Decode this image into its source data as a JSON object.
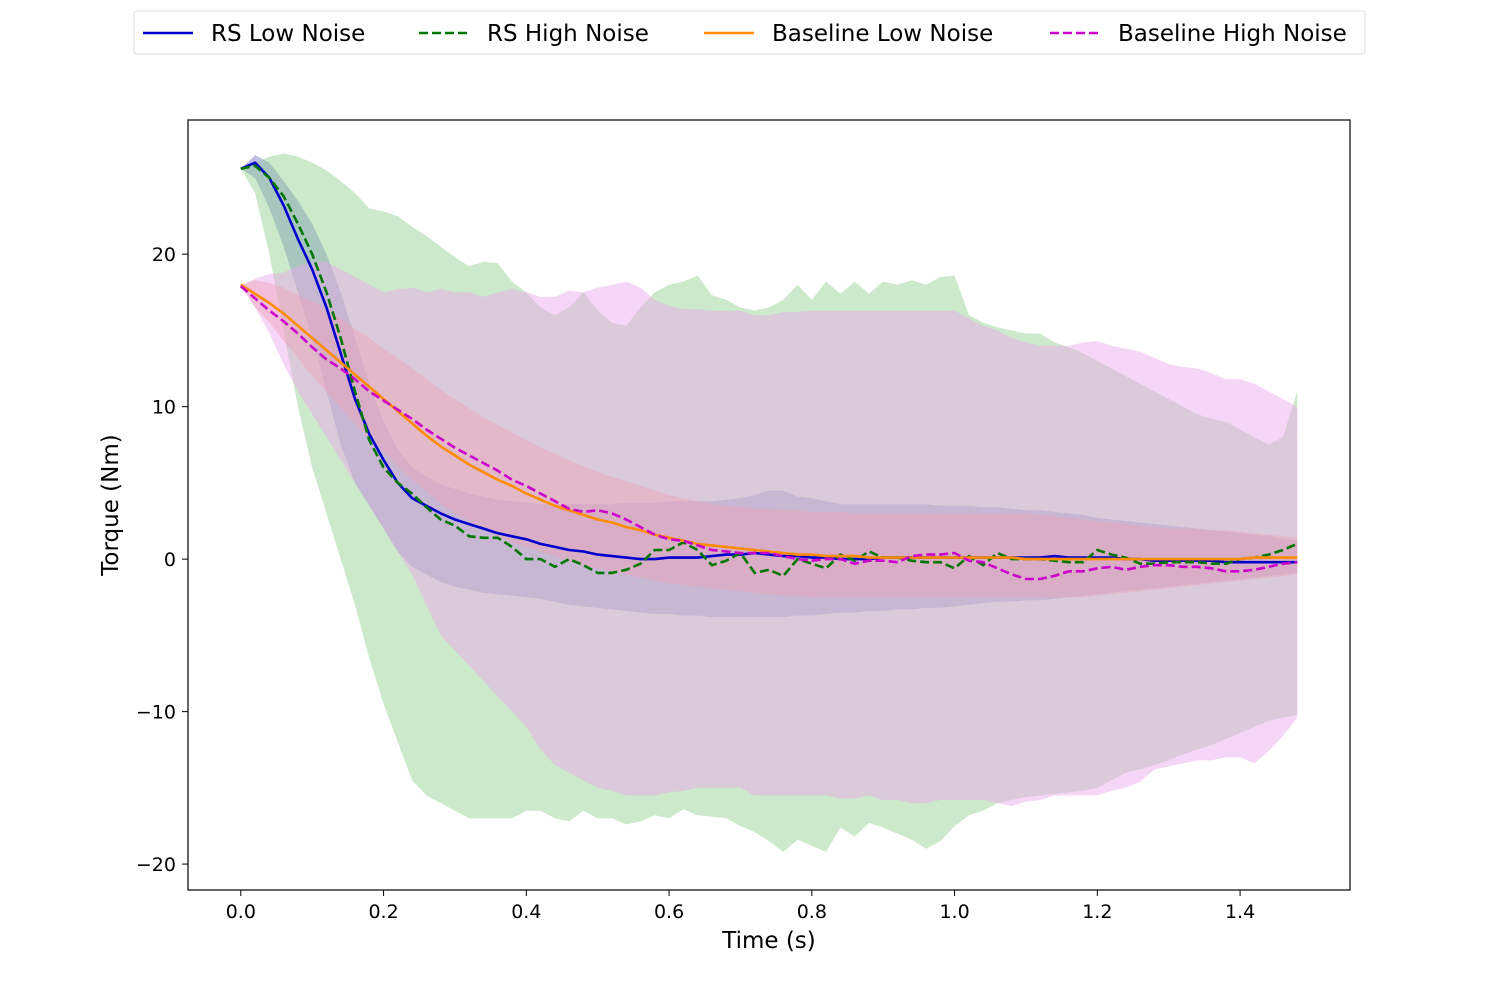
{
  "chart_data": {
    "type": "line",
    "title": "",
    "xlabel": "Time (s)",
    "ylabel": "Torque (Nm)",
    "xlim": [
      -0.074,
      1.554
    ],
    "ylim": [
      -21.7,
      28.8
    ],
    "xticks": [
      0.0,
      0.2,
      0.4,
      0.6,
      0.8,
      1.0,
      1.2,
      1.4
    ],
    "xtick_labels": [
      "0.0",
      "0.2",
      "0.4",
      "0.6",
      "0.8",
      "1.0",
      "1.2",
      "1.4"
    ],
    "yticks": [
      -20,
      -10,
      0,
      10,
      20
    ],
    "ytick_labels": [
      "−20",
      "−10",
      "0",
      "10",
      "20"
    ],
    "grid": false,
    "legend_position": "top-center outside",
    "x": [
      0.0,
      0.02,
      0.04,
      0.06,
      0.08,
      0.1,
      0.12,
      0.14,
      0.16,
      0.18,
      0.2,
      0.22,
      0.24,
      0.26,
      0.28,
      0.3,
      0.32,
      0.34,
      0.36,
      0.38,
      0.4,
      0.42,
      0.44,
      0.46,
      0.48,
      0.5,
      0.52,
      0.54,
      0.56,
      0.58,
      0.6,
      0.62,
      0.64,
      0.66,
      0.68,
      0.7,
      0.72,
      0.74,
      0.76,
      0.78,
      0.8,
      0.82,
      0.84,
      0.86,
      0.88,
      0.9,
      0.92,
      0.94,
      0.96,
      0.98,
      1.0,
      1.02,
      1.04,
      1.06,
      1.08,
      1.1,
      1.12,
      1.14,
      1.16,
      1.18,
      1.2,
      1.22,
      1.24,
      1.26,
      1.28,
      1.3,
      1.32,
      1.34,
      1.36,
      1.38,
      1.4,
      1.42,
      1.44,
      1.46,
      1.48
    ],
    "series": [
      {
        "name": "RS Low Noise",
        "color": "#0000cc",
        "dash": "solid",
        "fill": "#7070c8",
        "values": [
          25.6,
          26.0,
          25.0,
          23.2,
          21.0,
          19.0,
          16.5,
          13.5,
          10.5,
          8.2,
          6.5,
          5.0,
          4.0,
          3.5,
          3.0,
          2.6,
          2.3,
          2.0,
          1.7,
          1.5,
          1.3,
          1.0,
          0.8,
          0.6,
          0.5,
          0.3,
          0.2,
          0.1,
          0.0,
          0.0,
          0.1,
          0.1,
          0.1,
          0.2,
          0.3,
          0.3,
          0.4,
          0.3,
          0.2,
          0.2,
          0.1,
          0.1,
          0.0,
          0.0,
          0.0,
          0.1,
          0.1,
          0.1,
          0.1,
          0.1,
          0.1,
          0.1,
          0.1,
          0.1,
          0.1,
          0.1,
          0.1,
          0.2,
          0.1,
          0.1,
          0.1,
          0.1,
          0.0,
          0.0,
          -0.1,
          -0.1,
          -0.1,
          -0.1,
          -0.1,
          -0.2,
          -0.2,
          -0.2,
          -0.2,
          -0.2,
          -0.2
        ],
        "lower": [
          25.6,
          25.0,
          23.0,
          20.5,
          17.5,
          14.5,
          11.0,
          7.5,
          5.0,
          3.5,
          2.0,
          0.5,
          -0.5,
          -1.0,
          -1.5,
          -1.8,
          -2.0,
          -2.2,
          -2.3,
          -2.4,
          -2.5,
          -2.6,
          -2.8,
          -3.0,
          -3.1,
          -3.2,
          -3.3,
          -3.4,
          -3.5,
          -3.6,
          -3.6,
          -3.7,
          -3.7,
          -3.8,
          -3.8,
          -3.8,
          -3.8,
          -3.8,
          -3.8,
          -3.7,
          -3.7,
          -3.6,
          -3.5,
          -3.5,
          -3.4,
          -3.4,
          -3.3,
          -3.3,
          -3.2,
          -3.2,
          -3.1,
          -3.0,
          -2.9,
          -2.8,
          -2.8,
          -2.7,
          -2.7,
          -2.6,
          -2.5,
          -2.4,
          -2.3,
          -2.2,
          -2.1,
          -2.0,
          -1.9,
          -1.8,
          -1.7,
          -1.6,
          -1.5,
          -1.4,
          -1.3,
          -1.2,
          -1.1,
          -1.0,
          -0.9
        ],
        "upper": [
          25.6,
          26.5,
          26.0,
          24.8,
          23.5,
          22.0,
          20.0,
          17.5,
          14.5,
          11.5,
          9.0,
          7.2,
          6.0,
          5.4,
          4.9,
          4.6,
          4.3,
          4.1,
          3.9,
          3.8,
          3.7,
          3.6,
          3.6,
          3.6,
          3.6,
          3.6,
          3.6,
          3.7,
          3.7,
          3.7,
          3.8,
          3.8,
          3.8,
          3.8,
          3.9,
          4.0,
          4.2,
          4.5,
          4.5,
          4.1,
          4.0,
          3.8,
          3.6,
          3.6,
          3.6,
          3.6,
          3.6,
          3.6,
          3.6,
          3.5,
          3.5,
          3.5,
          3.4,
          3.4,
          3.3,
          3.2,
          3.2,
          3.1,
          3.0,
          2.9,
          2.7,
          2.6,
          2.5,
          2.4,
          2.3,
          2.2,
          2.1,
          2.0,
          1.9,
          1.8,
          1.7,
          1.6,
          1.5,
          1.3,
          1.2
        ]
      },
      {
        "name": "RS High Noise",
        "color": "#007700",
        "dash": "dashed",
        "fill": "#8fcf8f",
        "values": [
          25.6,
          25.8,
          25.0,
          23.8,
          22.0,
          20.0,
          17.5,
          14.5,
          11.0,
          7.8,
          6.0,
          5.0,
          4.3,
          3.4,
          2.6,
          2.2,
          1.5,
          1.4,
          1.4,
          0.8,
          0.0,
          0.0,
          -0.5,
          0.0,
          -0.4,
          -0.9,
          -0.9,
          -0.7,
          -0.3,
          0.6,
          0.6,
          1.1,
          0.6,
          -0.4,
          -0.1,
          0.4,
          -0.9,
          -0.7,
          -1.1,
          0.0,
          -0.3,
          -0.6,
          0.3,
          -0.1,
          0.5,
          0.1,
          0.1,
          -0.1,
          -0.2,
          -0.2,
          -0.6,
          0.2,
          -0.4,
          0.4,
          0.0,
          0.0,
          0.0,
          -0.1,
          -0.2,
          -0.2,
          0.6,
          0.3,
          0.1,
          -0.3,
          -0.3,
          -0.2,
          -0.2,
          -0.2,
          -0.3,
          -0.3,
          0.0,
          0.1,
          0.3,
          0.6,
          1.0
        ],
        "lower": [
          25.6,
          24.0,
          20.0,
          15.0,
          10.0,
          6.0,
          3.0,
          0.0,
          -3.0,
          -6.5,
          -9.5,
          -12.0,
          -14.5,
          -15.5,
          -16.0,
          -16.5,
          -17.0,
          -17.0,
          -17.0,
          -17.0,
          -16.5,
          -16.5,
          -17.0,
          -17.2,
          -16.5,
          -17.0,
          -17.0,
          -17.4,
          -17.2,
          -16.8,
          -17.0,
          -16.4,
          -16.8,
          -16.9,
          -17.0,
          -17.5,
          -17.9,
          -18.5,
          -19.2,
          -18.4,
          -18.8,
          -19.2,
          -17.6,
          -18.2,
          -17.3,
          -17.6,
          -18.0,
          -18.4,
          -19.0,
          -18.5,
          -17.5,
          -16.8,
          -16.5,
          -16.0,
          -15.8,
          -15.6,
          -15.5,
          -15.4,
          -15.3,
          -15.2,
          -15.0,
          -14.5,
          -14.0,
          -13.8,
          -13.5,
          -13.2,
          -12.8,
          -12.5,
          -12.2,
          -11.8,
          -11.4,
          -11.0,
          -10.6,
          -10.4,
          -10.2
        ],
        "upper": [
          25.6,
          26.0,
          26.4,
          26.6,
          26.4,
          26.0,
          25.5,
          24.8,
          24.0,
          23.0,
          22.8,
          22.5,
          21.8,
          21.2,
          20.5,
          19.8,
          19.2,
          19.5,
          19.4,
          18.2,
          17.5,
          16.5,
          16.0,
          16.5,
          17.5,
          16.3,
          15.5,
          15.3,
          16.5,
          17.5,
          18.0,
          18.2,
          18.6,
          17.3,
          17.0,
          16.5,
          16.3,
          16.5,
          17.0,
          18.0,
          17.0,
          18.2,
          17.4,
          18.2,
          17.4,
          18.2,
          18.0,
          18.3,
          18.0,
          18.5,
          18.6,
          16.0,
          15.5,
          15.2,
          15.0,
          14.8,
          14.8,
          14.2,
          13.9,
          13.5,
          13.0,
          12.5,
          12.0,
          11.5,
          11.0,
          10.5,
          10.0,
          9.5,
          9.2,
          9.0,
          8.5,
          8.0,
          7.5,
          8.0,
          11.0
        ]
      },
      {
        "name": "Baseline Low Noise",
        "color": "#ff8c00",
        "dash": "solid",
        "fill": "#f0a08a",
        "values": [
          18.0,
          17.4,
          16.8,
          16.1,
          15.3,
          14.5,
          13.7,
          12.9,
          12.1,
          11.3,
          10.5,
          9.7,
          8.9,
          8.1,
          7.4,
          6.8,
          6.2,
          5.7,
          5.2,
          4.8,
          4.3,
          3.9,
          3.5,
          3.2,
          2.9,
          2.6,
          2.4,
          2.1,
          1.9,
          1.6,
          1.4,
          1.2,
          1.0,
          0.9,
          0.8,
          0.7,
          0.6,
          0.5,
          0.4,
          0.3,
          0.3,
          0.2,
          0.2,
          0.2,
          0.1,
          0.1,
          0.1,
          0.1,
          0.1,
          0.1,
          0.1,
          0.1,
          0.1,
          0.1,
          0.1,
          0.0,
          0.0,
          0.0,
          0.0,
          0.0,
          0.0,
          0.0,
          0.0,
          0.0,
          0.0,
          0.0,
          0.0,
          0.0,
          0.0,
          0.0,
          0.0,
          0.1,
          0.1,
          0.1,
          0.1
        ],
        "lower": [
          18.0,
          16.5,
          15.5,
          14.3,
          13.2,
          12.0,
          11.0,
          9.9,
          8.9,
          7.9,
          7.0,
          6.1,
          5.2,
          4.4,
          3.7,
          3.0,
          2.5,
          2.0,
          1.5,
          1.1,
          0.8,
          0.5,
          0.2,
          -0.1,
          -0.4,
          -0.6,
          -0.8,
          -1.0,
          -1.2,
          -1.4,
          -1.6,
          -1.7,
          -1.8,
          -1.9,
          -2.0,
          -2.1,
          -2.2,
          -2.3,
          -2.4,
          -2.4,
          -2.5,
          -2.5,
          -2.5,
          -2.5,
          -2.5,
          -2.5,
          -2.5,
          -2.5,
          -2.5,
          -2.5,
          -2.5,
          -2.5,
          -2.5,
          -2.5,
          -2.5,
          -2.5,
          -2.5,
          -2.5,
          -2.5,
          -2.5,
          -2.4,
          -2.3,
          -2.2,
          -2.1,
          -2.0,
          -1.9,
          -1.8,
          -1.7,
          -1.6,
          -1.5,
          -1.4,
          -1.3,
          -1.2,
          -1.1,
          -1.0
        ],
        "upper": [
          18.0,
          18.3,
          18.1,
          17.8,
          17.3,
          16.9,
          16.4,
          15.8,
          15.1,
          14.5,
          13.8,
          13.2,
          12.5,
          11.8,
          11.1,
          10.5,
          9.9,
          9.3,
          8.8,
          8.3,
          7.8,
          7.3,
          6.9,
          6.5,
          6.1,
          5.7,
          5.4,
          5.1,
          4.8,
          4.5,
          4.2,
          4.0,
          3.8,
          3.6,
          3.5,
          3.4,
          3.3,
          3.3,
          3.2,
          3.2,
          3.1,
          3.1,
          3.1,
          3.0,
          3.0,
          3.0,
          3.0,
          3.0,
          3.0,
          3.0,
          3.0,
          3.0,
          3.0,
          3.0,
          3.0,
          3.0,
          2.9,
          2.8,
          2.7,
          2.6,
          2.5,
          2.4,
          2.3,
          2.2,
          2.1,
          2.0,
          2.0,
          2.0,
          1.9,
          1.9,
          1.8,
          1.7,
          1.6,
          1.5,
          1.4
        ]
      },
      {
        "name": "Baseline High Noise",
        "color": "#cc00cc",
        "dash": "dashed",
        "fill": "#eaa3ea",
        "values": [
          17.9,
          17.1,
          16.3,
          15.6,
          14.8,
          13.9,
          13.1,
          12.5,
          11.8,
          11.0,
          10.4,
          9.8,
          9.2,
          8.5,
          7.9,
          7.3,
          6.8,
          6.3,
          5.8,
          5.2,
          4.8,
          4.3,
          3.8,
          3.3,
          3.1,
          3.2,
          3.0,
          2.6,
          2.1,
          1.6,
          1.3,
          1.2,
          0.9,
          0.6,
          0.5,
          0.4,
          0.4,
          0.4,
          0.2,
          0.0,
          -0.1,
          0.0,
          0.0,
          -0.3,
          -0.1,
          -0.1,
          -0.2,
          0.2,
          0.3,
          0.3,
          0.4,
          -0.1,
          -0.2,
          -0.6,
          -1.0,
          -1.3,
          -1.3,
          -1.1,
          -0.8,
          -0.8,
          -0.6,
          -0.5,
          -0.7,
          -0.5,
          -0.4,
          -0.4,
          -0.5,
          -0.5,
          -0.6,
          -0.8,
          -0.8,
          -0.7,
          -0.5,
          -0.3,
          -0.2
        ],
        "lower": [
          17.9,
          16.5,
          14.8,
          12.8,
          11.0,
          9.5,
          8.0,
          6.5,
          5.0,
          3.5,
          2.0,
          0.5,
          -1.0,
          -3.0,
          -5.0,
          -6.0,
          -7.0,
          -8.0,
          -9.0,
          -10.0,
          -11.0,
          -12.5,
          -13.5,
          -14.0,
          -14.5,
          -15.0,
          -15.2,
          -15.5,
          -15.5,
          -15.5,
          -15.3,
          -15.2,
          -15.0,
          -15.0,
          -15.0,
          -15.0,
          -15.5,
          -15.5,
          -15.5,
          -15.5,
          -15.5,
          -15.5,
          -15.7,
          -15.7,
          -15.5,
          -15.8,
          -15.8,
          -16.0,
          -16.0,
          -15.8,
          -15.8,
          -15.8,
          -15.8,
          -16.0,
          -16.2,
          -15.9,
          -15.8,
          -15.5,
          -15.5,
          -15.5,
          -15.5,
          -15.2,
          -15.0,
          -14.6,
          -13.8,
          -13.6,
          -13.4,
          -13.2,
          -13.2,
          -13.0,
          -13.0,
          -13.4,
          -12.6,
          -11.6,
          -10.4
        ],
        "upper": [
          17.9,
          18.4,
          18.7,
          18.8,
          19.2,
          19.5,
          19.5,
          19.0,
          18.5,
          18.0,
          17.5,
          17.7,
          17.8,
          17.5,
          17.7,
          17.5,
          17.5,
          17.2,
          17.5,
          17.7,
          17.5,
          17.2,
          17.2,
          17.6,
          17.5,
          17.8,
          18.0,
          18.2,
          17.8,
          17.0,
          16.6,
          16.4,
          16.4,
          16.3,
          16.3,
          16.3,
          16.0,
          16.0,
          16.2,
          16.2,
          16.3,
          16.3,
          16.3,
          16.3,
          16.3,
          16.3,
          16.3,
          16.3,
          16.3,
          16.3,
          16.3,
          15.8,
          15.3,
          15.0,
          14.5,
          14.2,
          14.0,
          14.0,
          14.0,
          14.2,
          14.3,
          14.0,
          13.8,
          13.6,
          13.2,
          12.8,
          12.6,
          12.5,
          12.2,
          11.8,
          11.8,
          11.5,
          11.0,
          10.5,
          10.0
        ]
      }
    ]
  }
}
